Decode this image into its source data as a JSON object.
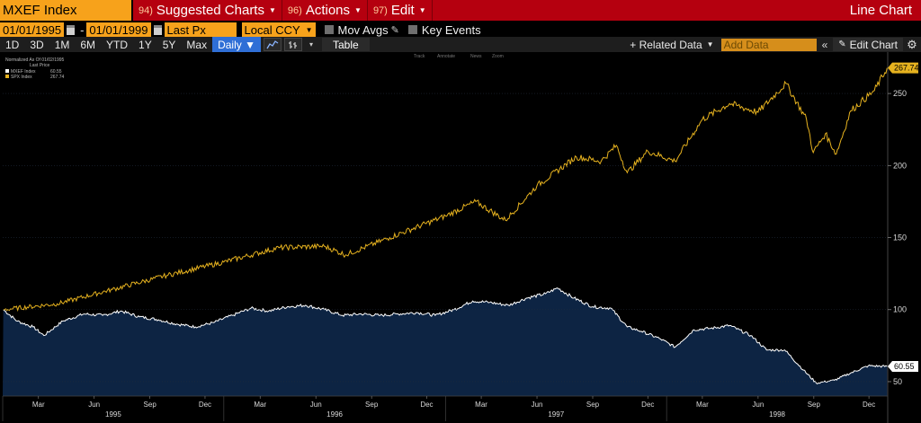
{
  "topbar": {
    "ticker": "MXEF Index",
    "menus": [
      {
        "num": "94)",
        "label": "Suggested Charts"
      },
      {
        "num": "96)",
        "label": "Actions"
      },
      {
        "num": "97)",
        "label": "Edit"
      }
    ],
    "title": "Line Chart"
  },
  "controls": {
    "start_date": "01/01/1995",
    "end_date": "01/01/1999",
    "price_field": "Last Px",
    "currency": "Local CCY",
    "mov_avgs": "Mov Avgs",
    "key_events": "Key Events"
  },
  "rangebar": {
    "ranges": [
      "1D",
      "3D",
      "1M",
      "6M",
      "YTD",
      "1Y",
      "5Y",
      "Max"
    ],
    "frequency": "Daily ▼",
    "table": "Table",
    "related_data": "+ Related Data",
    "add_data_placeholder": "Add Data",
    "collapse": "«",
    "edit_chart": "Edit Chart"
  },
  "chart_legend": {
    "header": "Normalized As Of 01/02/1995",
    "subheader": "Last Price",
    "tools": [
      "Track",
      "Annotate",
      "News",
      "Zoom"
    ]
  },
  "chart_data": {
    "type": "line",
    "x_range": [
      "1995-01-01",
      "1999-01-01"
    ],
    "ylim": [
      40,
      275
    ],
    "y_ticks": [
      50,
      100,
      150,
      200,
      250
    ],
    "x_month_ticks": [
      "Mar",
      "Jun",
      "Sep",
      "Dec",
      "Mar",
      "Jun",
      "Sep",
      "Dec",
      "Mar",
      "Jun",
      "Sep",
      "Dec",
      "Mar",
      "Jun",
      "Sep",
      "Dec"
    ],
    "x_years": [
      "1995",
      "1996",
      "1997",
      "1998"
    ],
    "series": [
      {
        "name": "MXEF Index",
        "color": "#ffffff",
        "area_color": "#0d2443",
        "last_value": 60.55,
        "last_label": "60.55",
        "points": [
          [
            "1995-01-02",
            100
          ],
          [
            "1995-01-25",
            92
          ],
          [
            "1995-02-20",
            88
          ],
          [
            "1995-03-10",
            82
          ],
          [
            "1995-04-10",
            92
          ],
          [
            "1995-05-15",
            97
          ],
          [
            "1995-06-15",
            96
          ],
          [
            "1995-07-15",
            99
          ],
          [
            "1995-08-15",
            95
          ],
          [
            "1995-09-15",
            93
          ],
          [
            "1995-10-15",
            90
          ],
          [
            "1995-11-15",
            88
          ],
          [
            "1995-12-15",
            91
          ],
          [
            "1996-01-15",
            96
          ],
          [
            "1996-02-15",
            101
          ],
          [
            "1996-03-15",
            99
          ],
          [
            "1996-04-15",
            102
          ],
          [
            "1996-05-15",
            103
          ],
          [
            "1996-06-15",
            100
          ],
          [
            "1996-07-15",
            96
          ],
          [
            "1996-08-15",
            97
          ],
          [
            "1996-09-15",
            96
          ],
          [
            "1996-10-15",
            97
          ],
          [
            "1996-11-15",
            98
          ],
          [
            "1996-12-15",
            96
          ],
          [
            "1997-01-15",
            100
          ],
          [
            "1997-02-15",
            106
          ],
          [
            "1997-03-15",
            105
          ],
          [
            "1997-04-15",
            103
          ],
          [
            "1997-05-15",
            108
          ],
          [
            "1997-06-15",
            111
          ],
          [
            "1997-07-05",
            115
          ],
          [
            "1997-08-01",
            108
          ],
          [
            "1997-09-01",
            102
          ],
          [
            "1997-10-01",
            101
          ],
          [
            "1997-10-28",
            88
          ],
          [
            "1997-11-20",
            85
          ],
          [
            "1997-12-20",
            80
          ],
          [
            "1998-01-15",
            74
          ],
          [
            "1998-02-15",
            86
          ],
          [
            "1998-03-15",
            87
          ],
          [
            "1998-04-15",
            89
          ],
          [
            "1998-05-20",
            82
          ],
          [
            "1998-06-15",
            72
          ],
          [
            "1998-07-15",
            72
          ],
          [
            "1998-08-15",
            58
          ],
          [
            "1998-09-05",
            49
          ],
          [
            "1998-10-05",
            51
          ],
          [
            "1998-11-01",
            56
          ],
          [
            "1998-11-30",
            61
          ],
          [
            "1998-12-31",
            60.55
          ]
        ]
      },
      {
        "name": "SPX Index",
        "color": "#e6b21f",
        "last_value": 267.74,
        "last_label": "267.74",
        "points": [
          [
            "1995-01-02",
            100
          ],
          [
            "1995-04-01",
            104
          ],
          [
            "1995-07-01",
            114
          ],
          [
            "1995-10-01",
            124
          ],
          [
            "1996-01-01",
            133
          ],
          [
            "1996-04-01",
            143
          ],
          [
            "1996-06-15",
            144
          ],
          [
            "1996-07-20",
            138
          ],
          [
            "1996-10-01",
            150
          ],
          [
            "1997-01-01",
            165
          ],
          [
            "1997-02-20",
            175
          ],
          [
            "1997-04-10",
            162
          ],
          [
            "1997-06-01",
            186
          ],
          [
            "1997-08-05",
            206
          ],
          [
            "1997-09-15",
            203
          ],
          [
            "1997-10-10",
            214
          ],
          [
            "1997-10-28",
            195
          ],
          [
            "1997-12-01",
            210
          ],
          [
            "1998-01-15",
            203
          ],
          [
            "1998-03-01",
            232
          ],
          [
            "1998-04-15",
            243
          ],
          [
            "1998-06-01",
            237
          ],
          [
            "1998-07-17",
            257
          ],
          [
            "1998-08-20",
            232
          ],
          [
            "1998-08-31",
            209
          ],
          [
            "1998-09-20",
            222
          ],
          [
            "1998-10-08",
            208
          ],
          [
            "1998-11-01",
            238
          ],
          [
            "1998-12-10",
            252
          ],
          [
            "1998-12-31",
            267.74
          ]
        ]
      }
    ]
  }
}
